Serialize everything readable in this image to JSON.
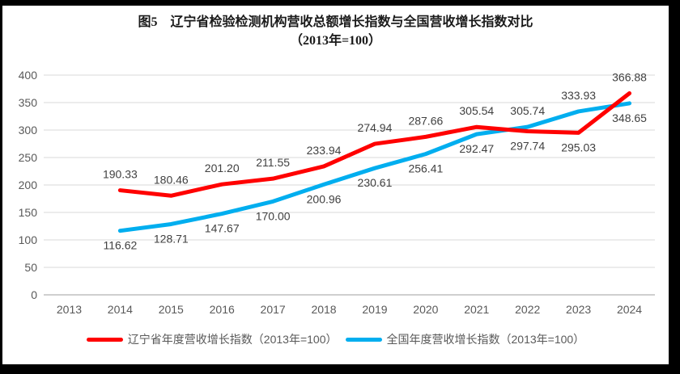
{
  "title": {
    "line1": "图5　辽宁省检验检测机构营收总额增长指数与全国营收增长指数对比",
    "line2": "（2013年=100）"
  },
  "chart_data": {
    "type": "line",
    "title": "图5 辽宁省检验检测机构营收总额增长指数与全国营收增长指数对比（2013年=100）",
    "categories": [
      "2013",
      "2014",
      "2015",
      "2016",
      "2017",
      "2018",
      "2019",
      "2020",
      "2021",
      "2022",
      "2023",
      "2024"
    ],
    "series": [
      {
        "name": "辽宁省年度营收增长指数（2013年=100）",
        "color": "#FF0000",
        "values": [
          null,
          190.33,
          180.46,
          201.2,
          211.55,
          233.94,
          274.94,
          287.66,
          305.54,
          297.74,
          295.03,
          366.88
        ],
        "label_position": [
          null,
          "above",
          "above",
          "above",
          "above",
          "above",
          "above",
          "above",
          "above",
          "below",
          "below",
          "above"
        ]
      },
      {
        "name": "全国年度营收增长指数（2013年=100）",
        "color": "#00AEEF",
        "values": [
          null,
          116.62,
          128.71,
          147.67,
          170.0,
          200.96,
          230.61,
          256.41,
          292.47,
          305.74,
          333.93,
          348.65
        ],
        "label_position": [
          null,
          "below",
          "below",
          "below",
          "below",
          "below",
          "below",
          "below",
          "below",
          "above",
          "above",
          "below"
        ]
      }
    ],
    "ylim": [
      0,
      400
    ],
    "ytick_step": 50,
    "grid": true,
    "data_labels": true,
    "label_decimals": 2,
    "legend_position": "bottom",
    "xlabel": "",
    "ylabel": ""
  },
  "colors": {
    "grid": "#D9D9D9",
    "axis": "#BFBFBF",
    "tick_text": "#595959",
    "data_label_text": "#404040",
    "legend_text": "#595959",
    "frame_border": "#000000",
    "background": "#FFFFFF"
  }
}
